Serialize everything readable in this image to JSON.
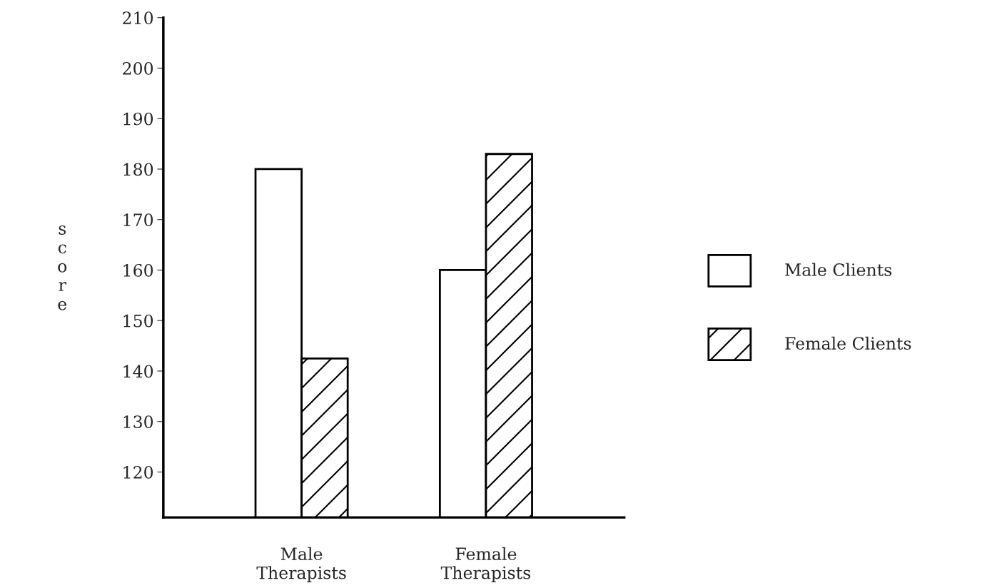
{
  "chart_data": {
    "type": "bar",
    "ylabel": "score",
    "categories": [
      "Male\nTherapists",
      "Female\nTherapists"
    ],
    "series": [
      {
        "name": "Male Clients",
        "color": "#ffffff",
        "values": [
          180,
          160
        ]
      },
      {
        "name": "Female Clients",
        "color": "#000000",
        "values": [
          142.5,
          183
        ]
      }
    ],
    "ylim": [
      111,
      210
    ],
    "yticks": [
      120,
      130,
      140,
      150,
      160,
      170,
      180,
      190,
      200,
      210
    ],
    "grid": false,
    "legend": "right"
  }
}
